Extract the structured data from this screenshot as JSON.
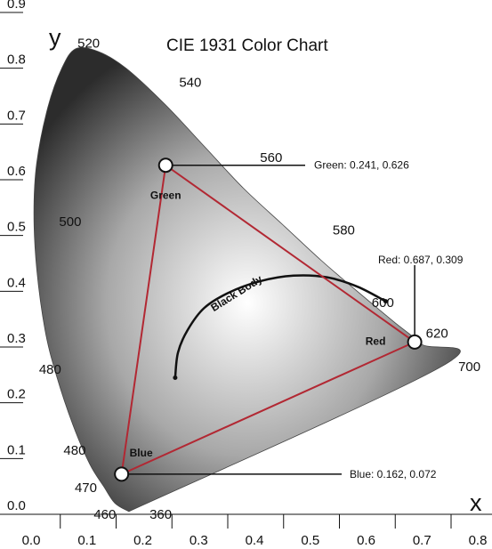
{
  "chart_data": {
    "type": "scatter",
    "title": "CIE 1931 Color Chart",
    "xlabel": "x",
    "ylabel": "y",
    "xlim": [
      0.0,
      0.8
    ],
    "ylim": [
      0.0,
      0.9
    ],
    "x_ticks": [
      "0.0",
      "0.1",
      "0.2",
      "0.3",
      "0.4",
      "0.5",
      "0.6",
      "0.7",
      "0.8"
    ],
    "y_ticks": [
      "0.0",
      "0.1",
      "0.2",
      "0.3",
      "0.4",
      "0.5",
      "0.6",
      "0.7",
      "0.8",
      "0.9"
    ],
    "grid": false,
    "locus": [
      [
        0.175,
        0.005
      ],
      [
        0.15,
        0.02
      ],
      [
        0.13,
        0.05
      ],
      [
        0.105,
        0.09
      ],
      [
        0.075,
        0.16
      ],
      [
        0.045,
        0.25
      ],
      [
        0.025,
        0.33
      ],
      [
        0.01,
        0.44
      ],
      [
        0.005,
        0.54
      ],
      [
        0.01,
        0.63
      ],
      [
        0.03,
        0.73
      ],
      [
        0.055,
        0.8
      ],
      [
        0.08,
        0.835
      ],
      [
        0.12,
        0.83
      ],
      [
        0.17,
        0.8
      ],
      [
        0.24,
        0.735
      ],
      [
        0.31,
        0.66
      ],
      [
        0.38,
        0.585
      ],
      [
        0.45,
        0.52
      ],
      [
        0.52,
        0.455
      ],
      [
        0.59,
        0.395
      ],
      [
        0.65,
        0.345
      ],
      [
        0.7,
        0.305
      ],
      [
        0.735,
        0.265
      ],
      [
        0.175,
        0.005
      ]
    ],
    "wavelength_labels": [
      {
        "text": "520",
        "x": 0.103,
        "y": 0.845
      },
      {
        "text": "540",
        "x": 0.285,
        "y": 0.775
      },
      {
        "text": "560",
        "x": 0.43,
        "y": 0.64
      },
      {
        "text": "580",
        "x": 0.56,
        "y": 0.51
      },
      {
        "text": "600",
        "x": 0.63,
        "y": 0.38
      },
      {
        "text": "620",
        "x": 0.727,
        "y": 0.325
      },
      {
        "text": "700",
        "x": 0.785,
        "y": 0.265
      },
      {
        "text": "500",
        "x": 0.07,
        "y": 0.525
      },
      {
        "text": "480",
        "x": 0.034,
        "y": 0.26
      },
      {
        "text": "480",
        "x": 0.078,
        "y": 0.115
      },
      {
        "text": "470",
        "x": 0.098,
        "y": 0.048
      },
      {
        "text": "460",
        "x": 0.132,
        "y": 0.0
      },
      {
        "text": "360",
        "x": 0.232,
        "y": 0.0
      }
    ],
    "gamut": [
      {
        "name": "Red",
        "x": 0.687,
        "y": 0.309,
        "callout": "Red: 0.687, 0.309"
      },
      {
        "name": "Green",
        "x": 0.241,
        "y": 0.626,
        "callout": "Green: 0.241, 0.626"
      },
      {
        "name": "Blue",
        "x": 0.162,
        "y": 0.072,
        "callout": "Blue: 0.162, 0.072"
      }
    ],
    "black_body": {
      "label": "Black Body",
      "points": [
        [
          0.258,
          0.245
        ],
        [
          0.263,
          0.29
        ],
        [
          0.28,
          0.33
        ],
        [
          0.31,
          0.37
        ],
        [
          0.355,
          0.398
        ],
        [
          0.41,
          0.418
        ],
        [
          0.47,
          0.428
        ],
        [
          0.53,
          0.425
        ],
        [
          0.585,
          0.408
        ],
        [
          0.635,
          0.382
        ]
      ]
    }
  },
  "colors": {
    "gamut_line": "#b22833",
    "black_body": "#111111",
    "axis": "#111111",
    "gradient_light": "#ffffff",
    "gradient_mid": "#a8a8a8",
    "gradient_dark": "#2c2c2c"
  }
}
